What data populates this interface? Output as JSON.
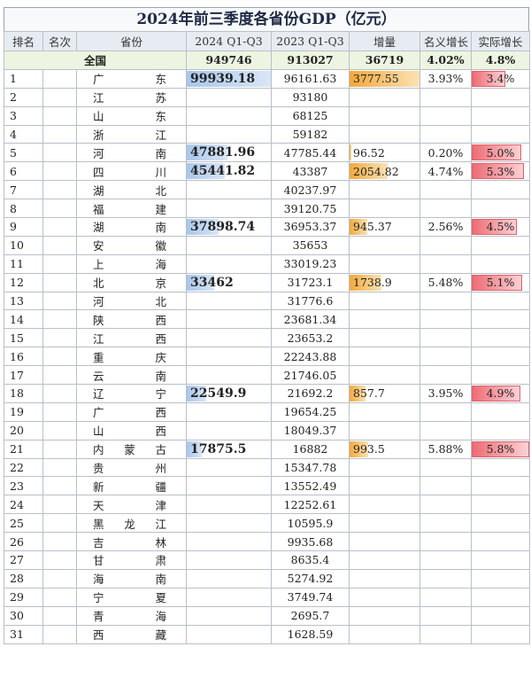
{
  "title": "2024年前三季度各省份GDP（亿元）",
  "headers": [
    "排名",
    "名次",
    "省份",
    "2024 Q1-Q3",
    "2023 Q1-Q3",
    "增量",
    "名义增长",
    "实际增长"
  ],
  "total": {
    "label": "全国",
    "gdp2024": "949746",
    "gdp2023": "913027",
    "increase": "36719",
    "nominal": "4.02%",
    "real": "4.8%"
  },
  "colors": {
    "blue_bar": "#a9c6ea",
    "orange_bar": "#f3a93b",
    "red_bar": "#ee6b74",
    "total_row": "#edf5e2"
  },
  "rows": [
    {
      "rank": "1",
      "mingci": "",
      "province": "广东",
      "gdp2024": "99939.18",
      "gdp2024_level": 1.0,
      "gdp2023": "96161.63",
      "increase": "3777.55",
      "increase_level": 1.0,
      "nominal": "3.93%",
      "real": "3.4%",
      "real_level": 0.59
    },
    {
      "rank": "2",
      "mingci": "",
      "province": "江苏",
      "gdp2024": "",
      "gdp2023": "93180",
      "increase": "",
      "nominal": "",
      "real": ""
    },
    {
      "rank": "3",
      "mingci": "",
      "province": "山东",
      "gdp2024": "",
      "gdp2023": "68125",
      "increase": "",
      "nominal": "",
      "real": ""
    },
    {
      "rank": "4",
      "mingci": "",
      "province": "浙江",
      "gdp2024": "",
      "gdp2023": "59182",
      "increase": "",
      "nominal": "",
      "real": ""
    },
    {
      "rank": "5",
      "mingci": "",
      "province": "河南",
      "gdp2024": "47881.96",
      "gdp2024_level": 0.48,
      "gdp2023": "47785.44",
      "increase": "96.52",
      "increase_level": 0.03,
      "nominal": "0.20%",
      "real": "5.0%",
      "real_level": 0.86
    },
    {
      "rank": "6",
      "mingci": "",
      "province": "四川",
      "gdp2024": "45441.82",
      "gdp2024_level": 0.45,
      "gdp2023": "43387",
      "increase": "2054.82",
      "increase_level": 0.54,
      "nominal": "4.74%",
      "real": "5.3%",
      "real_level": 0.91
    },
    {
      "rank": "7",
      "mingci": "",
      "province": "湖北",
      "gdp2024": "",
      "gdp2023": "40237.97",
      "increase": "",
      "nominal": "",
      "real": ""
    },
    {
      "rank": "8",
      "mingci": "",
      "province": "福建",
      "gdp2024": "",
      "gdp2023": "39120.75",
      "increase": "",
      "nominal": "",
      "real": ""
    },
    {
      "rank": "9",
      "mingci": "",
      "province": "湖南",
      "gdp2024": "37898.74",
      "gdp2024_level": 0.38,
      "gdp2023": "36953.37",
      "increase": "945.37",
      "increase_level": 0.25,
      "nominal": "2.56%",
      "real": "4.5%",
      "real_level": 0.78
    },
    {
      "rank": "10",
      "mingci": "",
      "province": "安徽",
      "gdp2024": "",
      "gdp2023": "35653",
      "increase": "",
      "nominal": "",
      "real": ""
    },
    {
      "rank": "11",
      "mingci": "",
      "province": "上海",
      "gdp2024": "",
      "gdp2023": "33019.23",
      "increase": "",
      "nominal": "",
      "real": ""
    },
    {
      "rank": "12",
      "mingci": "",
      "province": "北京",
      "gdp2024": "33462",
      "gdp2024_level": 0.33,
      "gdp2023": "31723.1",
      "increase": "1738.9",
      "increase_level": 0.46,
      "nominal": "5.48%",
      "real": "5.1%",
      "real_level": 0.88
    },
    {
      "rank": "13",
      "mingci": "",
      "province": "河北",
      "gdp2024": "",
      "gdp2023": "31776.6",
      "increase": "",
      "nominal": "",
      "real": ""
    },
    {
      "rank": "14",
      "mingci": "",
      "province": "陕西",
      "gdp2024": "",
      "gdp2023": "23681.34",
      "increase": "",
      "nominal": "",
      "real": ""
    },
    {
      "rank": "15",
      "mingci": "",
      "province": "江西",
      "gdp2024": "",
      "gdp2023": "23653.2",
      "increase": "",
      "nominal": "",
      "real": ""
    },
    {
      "rank": "16",
      "mingci": "",
      "province": "重庆",
      "gdp2024": "",
      "gdp2023": "22243.88",
      "increase": "",
      "nominal": "",
      "real": ""
    },
    {
      "rank": "17",
      "mingci": "",
      "province": "云南",
      "gdp2024": "",
      "gdp2023": "21746.05",
      "increase": "",
      "nominal": "",
      "real": ""
    },
    {
      "rank": "18",
      "mingci": "",
      "province": "辽宁",
      "gdp2024": "22549.9",
      "gdp2024_level": 0.23,
      "gdp2023": "21692.2",
      "increase": "857.7",
      "increase_level": 0.23,
      "nominal": "3.95%",
      "real": "4.9%",
      "real_level": 0.84
    },
    {
      "rank": "19",
      "mingci": "",
      "province": "广西",
      "gdp2024": "",
      "gdp2023": "19654.25",
      "increase": "",
      "nominal": "",
      "real": ""
    },
    {
      "rank": "20",
      "mingci": "",
      "province": "山西",
      "gdp2024": "",
      "gdp2023": "18049.37",
      "increase": "",
      "nominal": "",
      "real": ""
    },
    {
      "rank": "21",
      "mingci": "",
      "province": "内蒙古",
      "gdp2024": "17875.5",
      "gdp2024_level": 0.18,
      "gdp2023": "16882",
      "increase": "993.5",
      "increase_level": 0.26,
      "nominal": "5.88%",
      "real": "5.8%",
      "real_level": 1.0
    },
    {
      "rank": "22",
      "mingci": "",
      "province": "贵州",
      "gdp2024": "",
      "gdp2023": "15347.78",
      "increase": "",
      "nominal": "",
      "real": ""
    },
    {
      "rank": "23",
      "mingci": "",
      "province": "新疆",
      "gdp2024": "",
      "gdp2023": "13552.49",
      "increase": "",
      "nominal": "",
      "real": ""
    },
    {
      "rank": "24",
      "mingci": "",
      "province": "天津",
      "gdp2024": "",
      "gdp2023": "12252.61",
      "increase": "",
      "nominal": "",
      "real": ""
    },
    {
      "rank": "25",
      "mingci": "",
      "province": "黑龙江",
      "gdp2024": "",
      "gdp2023": "10595.9",
      "increase": "",
      "nominal": "",
      "real": ""
    },
    {
      "rank": "26",
      "mingci": "",
      "province": "吉林",
      "gdp2024": "",
      "gdp2023": "9935.68",
      "increase": "",
      "nominal": "",
      "real": ""
    },
    {
      "rank": "27",
      "mingci": "",
      "province": "甘肃",
      "gdp2024": "",
      "gdp2023": "8635.4",
      "increase": "",
      "nominal": "",
      "real": ""
    },
    {
      "rank": "28",
      "mingci": "",
      "province": "海南",
      "gdp2024": "",
      "gdp2023": "5274.92",
      "increase": "",
      "nominal": "",
      "real": ""
    },
    {
      "rank": "29",
      "mingci": "",
      "province": "宁夏",
      "gdp2024": "",
      "gdp2023": "3749.74",
      "increase": "",
      "nominal": "",
      "real": ""
    },
    {
      "rank": "30",
      "mingci": "",
      "province": "青海",
      "gdp2024": "",
      "gdp2023": "2695.7",
      "increase": "",
      "nominal": "",
      "real": ""
    },
    {
      "rank": "31",
      "mingci": "",
      "province": "西藏",
      "gdp2024": "",
      "gdp2023": "1628.59",
      "increase": "",
      "nominal": "",
      "real": ""
    }
  ]
}
